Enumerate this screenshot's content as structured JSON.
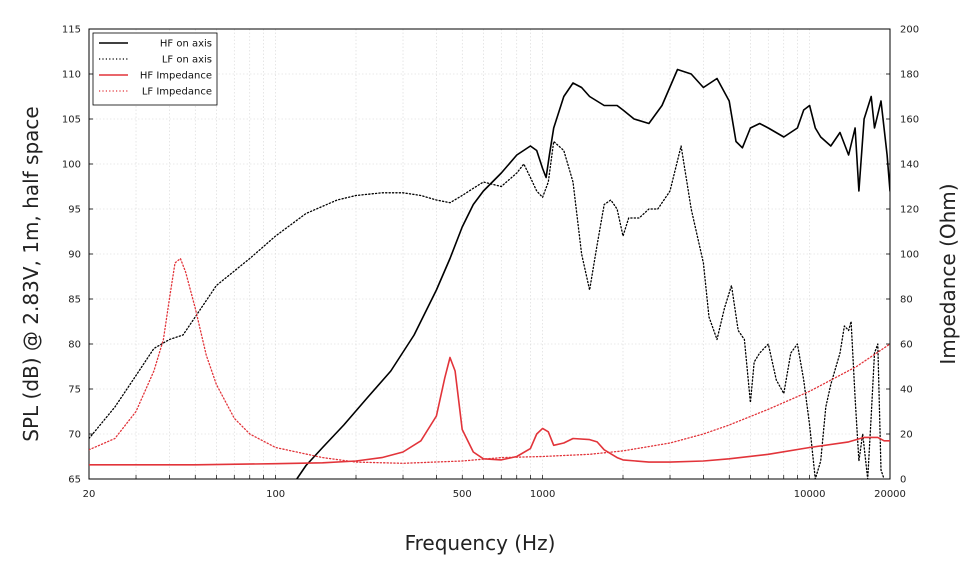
{
  "chart_data": {
    "type": "line",
    "title": "",
    "xlabel": "Frequency (Hz)",
    "ylabel": "SPL (dB) @ 2.83V, 1m, half space",
    "y2label": "Impedance (Ohm)",
    "xscale": "log",
    "xlim": [
      20,
      20000
    ],
    "ylim": [
      65,
      115
    ],
    "y2lim": [
      0,
      200
    ],
    "grid": true,
    "legend_position": "top-left",
    "x_ticks": [
      20,
      100,
      500,
      1000,
      10000,
      20000
    ],
    "x_tick_labels": [
      "20",
      "100",
      "500",
      "1000",
      "10000",
      "20000"
    ],
    "y_ticks": [
      65,
      70,
      75,
      80,
      85,
      90,
      95,
      100,
      105,
      110,
      115
    ],
    "y_tick_labels": [
      "65",
      "70",
      "75",
      "80",
      "85",
      "90",
      "95",
      "100",
      "105",
      "110",
      "115"
    ],
    "y2_ticks": [
      0,
      20,
      40,
      60,
      80,
      100,
      120,
      140,
      160,
      180,
      200
    ],
    "y2_tick_labels": [
      "0",
      "20",
      "40",
      "60",
      "80",
      "100",
      "120",
      "140",
      "160",
      "180",
      "200"
    ],
    "series": [
      {
        "name": "HF on axis",
        "axis": "left",
        "color": "#000000",
        "style": "solid",
        "points": [
          [
            120,
            65
          ],
          [
            130,
            66.5
          ],
          [
            150,
            68.5
          ],
          [
            180,
            71
          ],
          [
            220,
            74
          ],
          [
            270,
            77
          ],
          [
            330,
            81
          ],
          [
            400,
            86
          ],
          [
            450,
            89.5
          ],
          [
            500,
            93
          ],
          [
            550,
            95.5
          ],
          [
            600,
            97
          ],
          [
            700,
            99
          ],
          [
            800,
            101
          ],
          [
            900,
            102
          ],
          [
            950,
            101.5
          ],
          [
            1000,
            99.5
          ],
          [
            1030,
            98.5
          ],
          [
            1060,
            101
          ],
          [
            1100,
            104
          ],
          [
            1200,
            107.5
          ],
          [
            1300,
            109
          ],
          [
            1400,
            108.5
          ],
          [
            1500,
            107.5
          ],
          [
            1700,
            106.5
          ],
          [
            1900,
            106.5
          ],
          [
            2000,
            106
          ],
          [
            2200,
            105
          ],
          [
            2500,
            104.5
          ],
          [
            2800,
            106.5
          ],
          [
            3200,
            110.5
          ],
          [
            3600,
            110
          ],
          [
            4000,
            108.5
          ],
          [
            4500,
            109.5
          ],
          [
            5000,
            107
          ],
          [
            5300,
            102.5
          ],
          [
            5600,
            101.8
          ],
          [
            6000,
            104
          ],
          [
            6500,
            104.5
          ],
          [
            7000,
            104
          ],
          [
            8000,
            103
          ],
          [
            9000,
            104
          ],
          [
            9500,
            106
          ],
          [
            10000,
            106.5
          ],
          [
            10500,
            104
          ],
          [
            11000,
            103
          ],
          [
            12000,
            102
          ],
          [
            13000,
            103.5
          ],
          [
            14000,
            101
          ],
          [
            14800,
            104
          ],
          [
            15300,
            97
          ],
          [
            16000,
            105
          ],
          [
            17000,
            107.5
          ],
          [
            17500,
            104
          ],
          [
            18500,
            107
          ],
          [
            19500,
            101
          ],
          [
            20000,
            97
          ]
        ]
      },
      {
        "name": "LF on axis",
        "axis": "left",
        "color": "#000000",
        "style": "dotted",
        "points": [
          [
            20,
            69.5
          ],
          [
            25,
            73
          ],
          [
            30,
            76.5
          ],
          [
            35,
            79.5
          ],
          [
            40,
            80.5
          ],
          [
            45,
            81
          ],
          [
            50,
            83
          ],
          [
            60,
            86.5
          ],
          [
            80,
            89.5
          ],
          [
            100,
            92
          ],
          [
            130,
            94.5
          ],
          [
            170,
            96
          ],
          [
            200,
            96.5
          ],
          [
            250,
            96.8
          ],
          [
            300,
            96.8
          ],
          [
            350,
            96.5
          ],
          [
            400,
            96
          ],
          [
            450,
            95.7
          ],
          [
            500,
            96.5
          ],
          [
            550,
            97.3
          ],
          [
            600,
            98
          ],
          [
            700,
            97.5
          ],
          [
            800,
            99
          ],
          [
            850,
            100
          ],
          [
            900,
            98.5
          ],
          [
            950,
            97
          ],
          [
            1000,
            96.3
          ],
          [
            1050,
            98
          ],
          [
            1100,
            102.5
          ],
          [
            1200,
            101.5
          ],
          [
            1300,
            98
          ],
          [
            1400,
            90
          ],
          [
            1500,
            86
          ],
          [
            1600,
            91
          ],
          [
            1700,
            95.5
          ],
          [
            1800,
            96
          ],
          [
            1900,
            95
          ],
          [
            2000,
            92
          ],
          [
            2100,
            94
          ],
          [
            2300,
            94
          ],
          [
            2500,
            95
          ],
          [
            2700,
            95
          ],
          [
            3000,
            97
          ],
          [
            3300,
            102
          ],
          [
            3600,
            95
          ],
          [
            4000,
            89
          ],
          [
            4200,
            83
          ],
          [
            4500,
            80.5
          ],
          [
            4800,
            84
          ],
          [
            5100,
            86.5
          ],
          [
            5400,
            81.5
          ],
          [
            5700,
            80.5
          ],
          [
            6000,
            73.5
          ],
          [
            6200,
            78
          ],
          [
            6500,
            79
          ],
          [
            7000,
            80
          ],
          [
            7500,
            76
          ],
          [
            8000,
            74.5
          ],
          [
            8500,
            79
          ],
          [
            9000,
            80
          ],
          [
            9500,
            76
          ],
          [
            10000,
            71
          ],
          [
            10500,
            65
          ],
          [
            11000,
            67
          ],
          [
            11500,
            73
          ],
          [
            12000,
            75.5
          ],
          [
            13000,
            79
          ],
          [
            13500,
            82
          ],
          [
            14000,
            81.5
          ],
          [
            14300,
            82.5
          ],
          [
            14800,
            74
          ],
          [
            15300,
            67
          ],
          [
            15800,
            70
          ],
          [
            16500,
            65
          ],
          [
            17000,
            72
          ],
          [
            17500,
            79
          ],
          [
            18000,
            80
          ],
          [
            18500,
            66
          ],
          [
            19000,
            65
          ]
        ]
      },
      {
        "name": "HF Impedance",
        "axis": "right",
        "color": "#e2343a",
        "style": "solid",
        "points": [
          [
            20,
            6.3
          ],
          [
            50,
            6.3
          ],
          [
            100,
            6.8
          ],
          [
            150,
            7.2
          ],
          [
            200,
            8
          ],
          [
            250,
            9.5
          ],
          [
            300,
            12
          ],
          [
            350,
            17
          ],
          [
            400,
            28
          ],
          [
            430,
            45
          ],
          [
            450,
            54
          ],
          [
            470,
            48
          ],
          [
            500,
            22
          ],
          [
            550,
            12
          ],
          [
            600,
            9
          ],
          [
            700,
            8.5
          ],
          [
            800,
            10
          ],
          [
            900,
            13.5
          ],
          [
            950,
            20
          ],
          [
            1000,
            22.5
          ],
          [
            1050,
            21
          ],
          [
            1100,
            15
          ],
          [
            1200,
            16
          ],
          [
            1300,
            18
          ],
          [
            1500,
            17.5
          ],
          [
            1600,
            16.5
          ],
          [
            1700,
            13
          ],
          [
            1900,
            9.5
          ],
          [
            2000,
            8.5
          ],
          [
            2500,
            7.5
          ],
          [
            3000,
            7.5
          ],
          [
            4000,
            8
          ],
          [
            5000,
            9
          ],
          [
            7000,
            11
          ],
          [
            10000,
            14
          ],
          [
            14000,
            16.5
          ],
          [
            16000,
            18.5
          ],
          [
            18000,
            18.5
          ],
          [
            19000,
            17
          ],
          [
            20000,
            17
          ]
        ]
      },
      {
        "name": "LF Impedance",
        "axis": "right",
        "color": "#e2343a",
        "style": "dotted",
        "points": [
          [
            20,
            13
          ],
          [
            25,
            18
          ],
          [
            30,
            30
          ],
          [
            35,
            48
          ],
          [
            38,
            62
          ],
          [
            40,
            80
          ],
          [
            42,
            96
          ],
          [
            44,
            98
          ],
          [
            46,
            92
          ],
          [
            50,
            76
          ],
          [
            55,
            55
          ],
          [
            60,
            42
          ],
          [
            70,
            27
          ],
          [
            80,
            20
          ],
          [
            100,
            14
          ],
          [
            150,
            9.5
          ],
          [
            200,
            7.5
          ],
          [
            300,
            7
          ],
          [
            500,
            8
          ],
          [
            700,
            9.5
          ],
          [
            1000,
            10
          ],
          [
            1500,
            11
          ],
          [
            2000,
            12.5
          ],
          [
            3000,
            16
          ],
          [
            4000,
            20
          ],
          [
            5000,
            24
          ],
          [
            7000,
            31
          ],
          [
            10000,
            39
          ],
          [
            15000,
            50
          ],
          [
            20000,
            60
          ]
        ]
      }
    ]
  }
}
